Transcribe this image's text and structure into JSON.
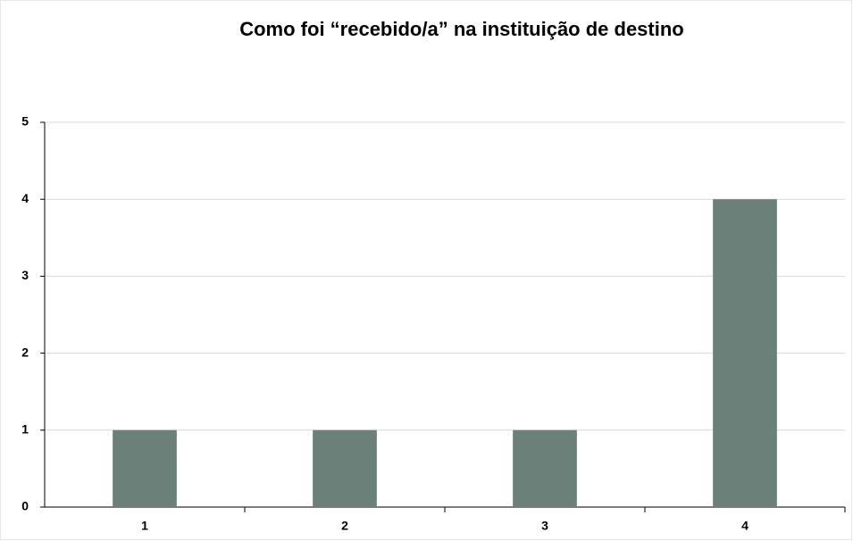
{
  "chart_data": {
    "type": "bar",
    "title": "Como foi “recebido/a” na instituição de destino",
    "categories": [
      "1",
      "2",
      "3",
      "4"
    ],
    "values": [
      1,
      1,
      1,
      4
    ],
    "color": "#6a8078",
    "ylim": [
      0,
      5
    ],
    "yticks": [
      0,
      1,
      2,
      3,
      4,
      5
    ],
    "grid": true
  }
}
